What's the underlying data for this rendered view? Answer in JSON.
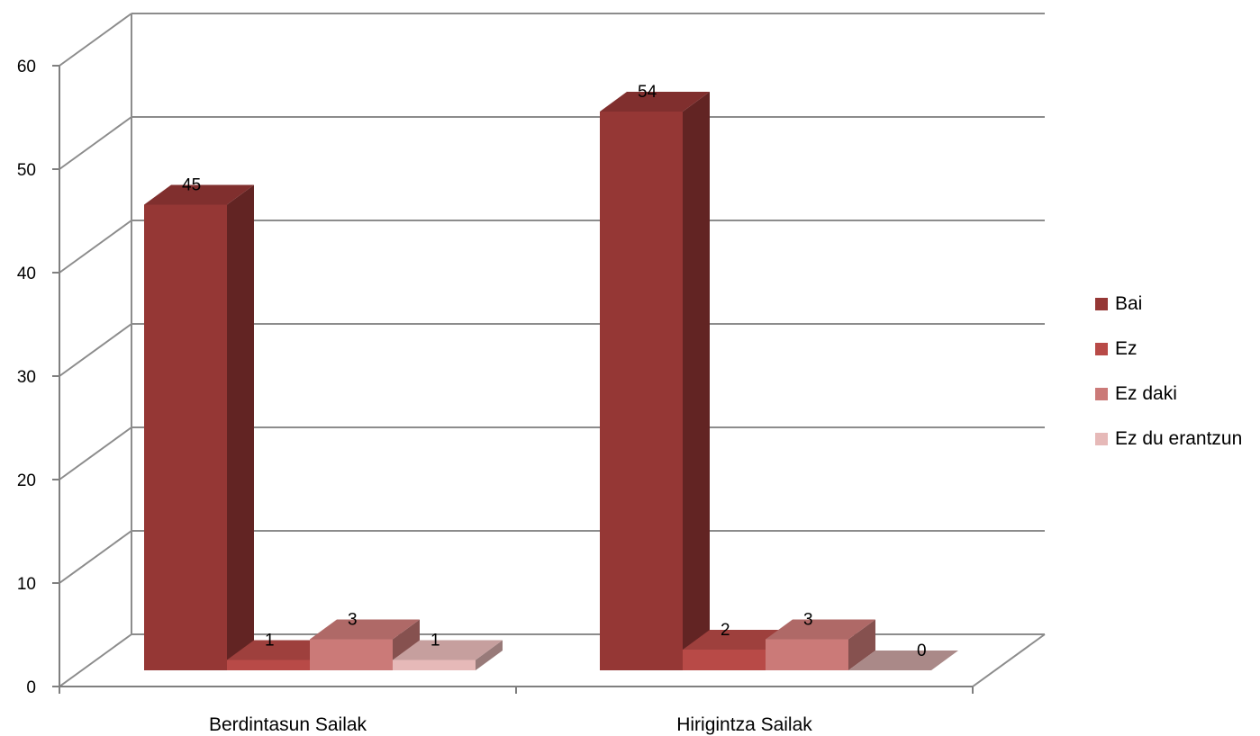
{
  "chart_data": {
    "type": "bar",
    "categories": [
      "Berdintasun Sailak",
      "Hirigintza Sailak"
    ],
    "series": [
      {
        "name": "Bai",
        "values": [
          45,
          54
        ],
        "color": "#953735"
      },
      {
        "name": "Ez",
        "values": [
          1,
          2
        ],
        "color": "#B84A47"
      },
      {
        "name": "Ez daki",
        "values": [
          3,
          3
        ],
        "color": "#CB7A78"
      },
      {
        "name": "Ez du erantzun",
        "values": [
          1,
          0
        ],
        "color": "#E6B9B8"
      }
    ],
    "y_ticks": [
      "0",
      "10",
      "20",
      "30",
      "40",
      "50",
      "60"
    ],
    "ylim": [
      0,
      60
    ],
    "grid": true,
    "three_d": true,
    "legend_position": "right"
  }
}
